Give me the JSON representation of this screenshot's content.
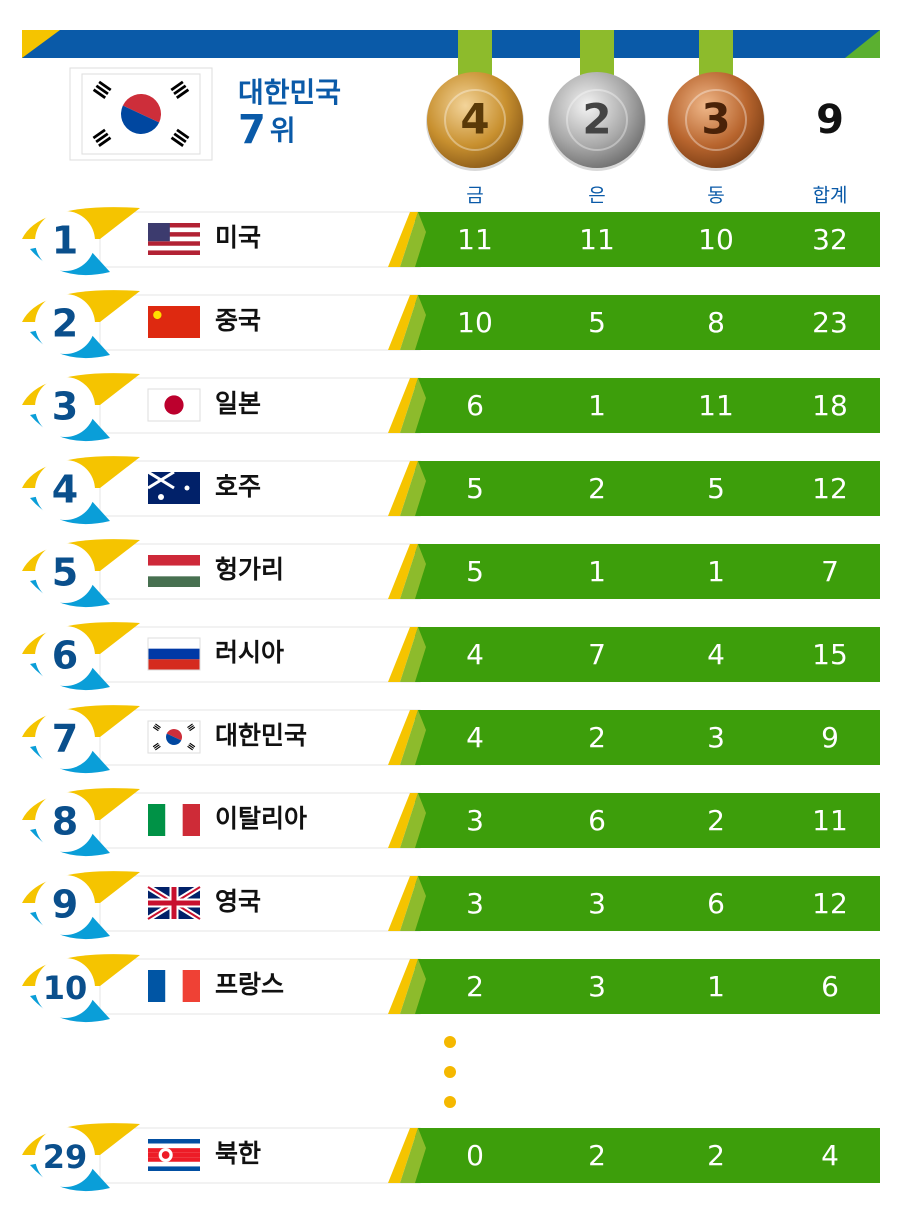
{
  "header": {
    "country": "대한민국",
    "rank": 7,
    "rank_suffix": "위",
    "medals": {
      "gold": 4,
      "silver": 2,
      "bronze": 3,
      "total": 9
    },
    "column_labels": [
      "금",
      "은",
      "동",
      "합계"
    ]
  },
  "table": {
    "rows": [
      {
        "rank": 1,
        "country": "미국",
        "gold": 11,
        "silver": 11,
        "bronze": 10,
        "total": 32
      },
      {
        "rank": 2,
        "country": "중국",
        "gold": 10,
        "silver": 5,
        "bronze": 8,
        "total": 23
      },
      {
        "rank": 3,
        "country": "일본",
        "gold": 6,
        "silver": 1,
        "bronze": 11,
        "total": 18
      },
      {
        "rank": 4,
        "country": "호주",
        "gold": 5,
        "silver": 2,
        "bronze": 5,
        "total": 12
      },
      {
        "rank": 5,
        "country": "헝가리",
        "gold": 5,
        "silver": 1,
        "bronze": 1,
        "total": 7
      },
      {
        "rank": 6,
        "country": "러시아",
        "gold": 4,
        "silver": 7,
        "bronze": 4,
        "total": 15
      },
      {
        "rank": 7,
        "country": "대한민국",
        "gold": 4,
        "silver": 2,
        "bronze": 3,
        "total": 9
      },
      {
        "rank": 8,
        "country": "이탈리아",
        "gold": 3,
        "silver": 6,
        "bronze": 2,
        "total": 11
      },
      {
        "rank": 9,
        "country": "영국",
        "gold": 3,
        "silver": 3,
        "bronze": 6,
        "total": 12
      },
      {
        "rank": 10,
        "country": "프랑스",
        "gold": 2,
        "silver": 3,
        "bronze": 1,
        "total": 6
      },
      {
        "rank": 29,
        "country": "북한",
        "gold": 0,
        "silver": 2,
        "bronze": 2,
        "total": 4
      }
    ]
  }
}
